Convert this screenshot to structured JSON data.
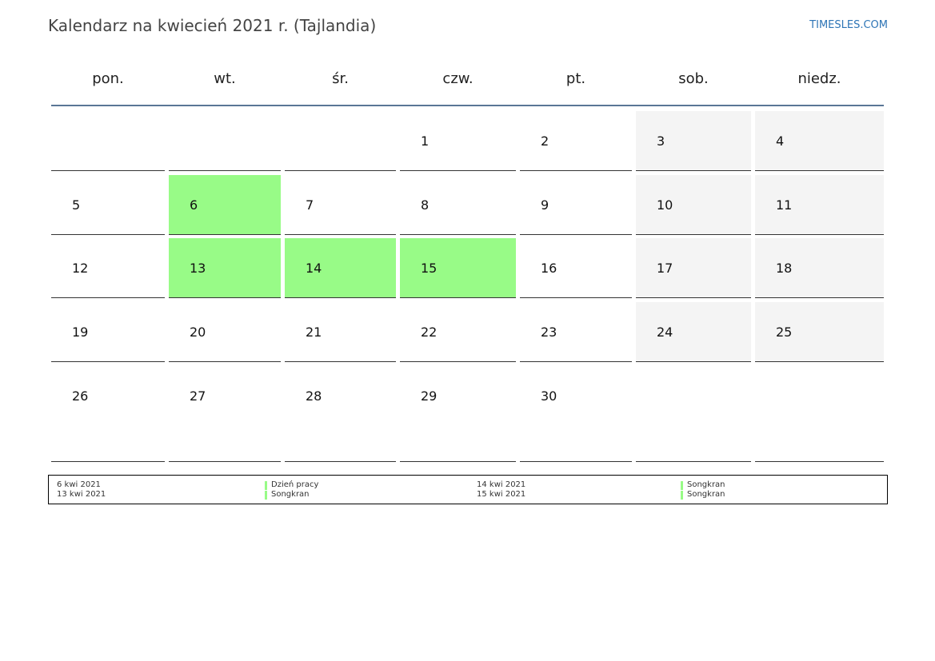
{
  "header": {
    "title": "Kalendarz na kwiecień 2021 r. (Tajlandia)",
    "brand": "TIMESLES.COM"
  },
  "calendar": {
    "weekdays": [
      "pon.",
      "wt.",
      "śr.",
      "czw.",
      "pt.",
      "sob.",
      "niedz."
    ],
    "holiday_color": "#98fb87",
    "weekend_color": "#f4f4f4",
    "weeks": [
      {
        "days": [
          null,
          null,
          null,
          1,
          2,
          3,
          4
        ],
        "holiday": [
          false,
          false,
          false,
          false,
          false,
          false,
          false
        ]
      },
      {
        "days": [
          5,
          6,
          7,
          8,
          9,
          10,
          11
        ],
        "holiday": [
          false,
          true,
          false,
          false,
          false,
          false,
          false
        ]
      },
      {
        "days": [
          12,
          13,
          14,
          15,
          16,
          17,
          18
        ],
        "holiday": [
          false,
          true,
          true,
          true,
          false,
          false,
          false
        ]
      },
      {
        "days": [
          19,
          20,
          21,
          22,
          23,
          24,
          25
        ],
        "holiday": [
          false,
          false,
          false,
          false,
          false,
          false,
          false
        ]
      },
      {
        "days": [
          26,
          27,
          28,
          29,
          30,
          null,
          null
        ],
        "holiday": [
          false,
          false,
          false,
          false,
          false,
          false,
          false
        ]
      }
    ]
  },
  "legend": [
    {
      "date": "6 kwi 2021",
      "name": "Dzień pracy"
    },
    {
      "date": "13 kwi 2021",
      "name": "Songkran"
    },
    {
      "date": "14 kwi 2021",
      "name": "Songkran"
    },
    {
      "date": "15 kwi 2021",
      "name": "Songkran"
    }
  ]
}
